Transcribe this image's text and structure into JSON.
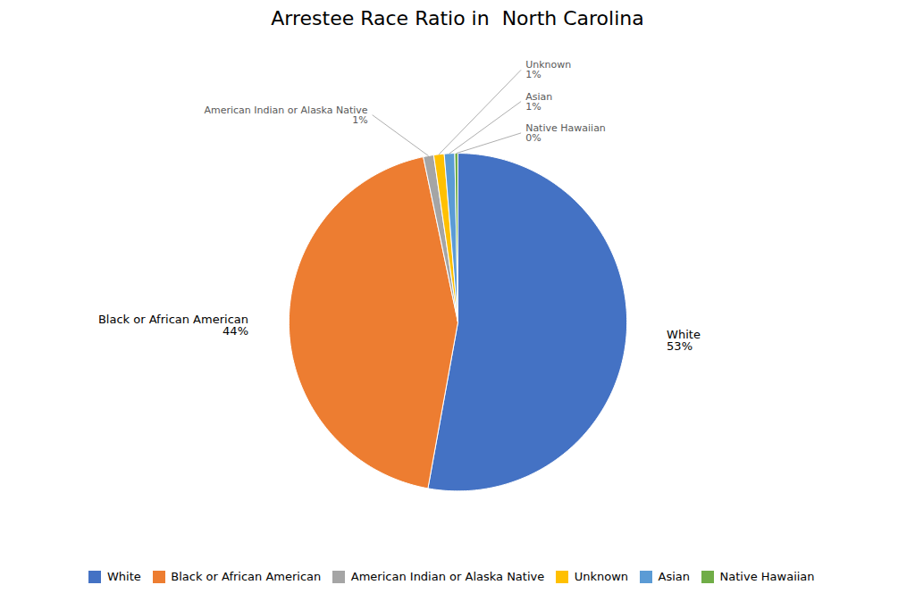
{
  "chart_data": {
    "type": "pie",
    "title": "Arrestee Race Ratio in  North Carolina",
    "categories": [
      "White",
      "Black or African American",
      "American Indian or Alaska Native",
      "Unknown",
      "Asian",
      "Native Hawaiian"
    ],
    "values": [
      53,
      44,
      1,
      1,
      1,
      0.3
    ],
    "value_labels": [
      "53%",
      "44%",
      "1%",
      "1%",
      "1%",
      "0%"
    ],
    "colors": [
      "#4472C4",
      "#ED7D31",
      "#A5A5A5",
      "#FFC000",
      "#5B9BD5",
      "#70AD47"
    ],
    "data_labels": true,
    "legend": "bottom"
  }
}
